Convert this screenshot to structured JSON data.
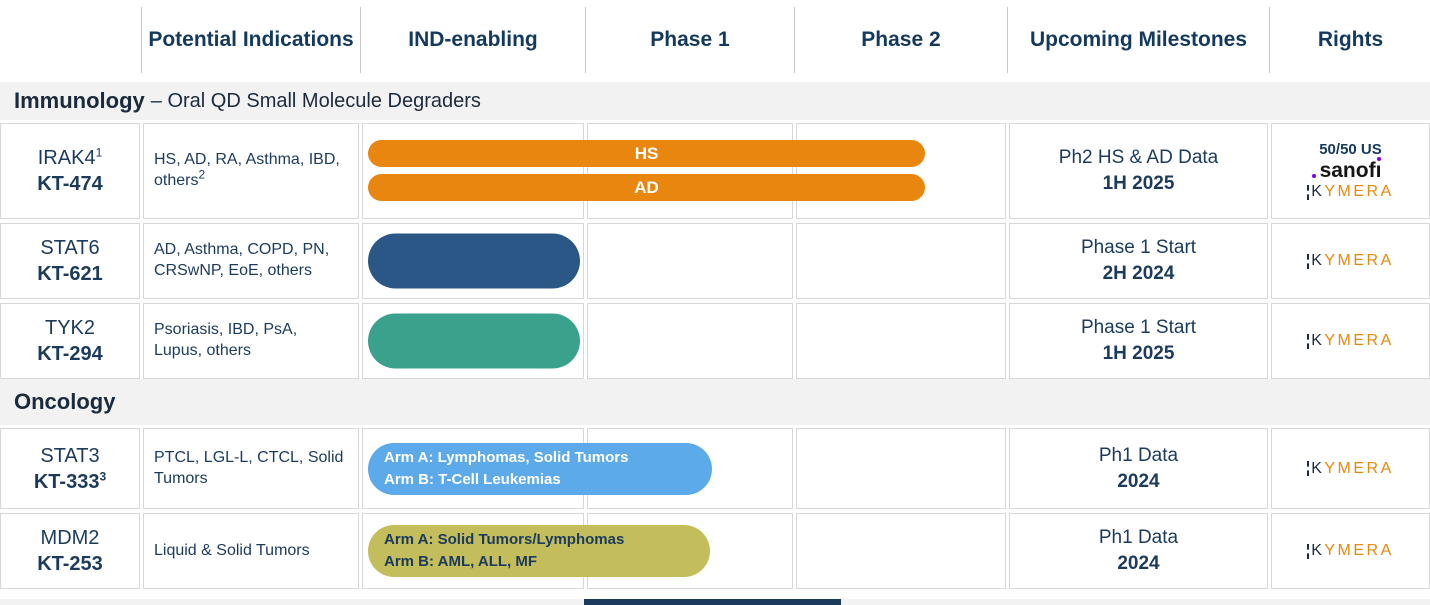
{
  "header": {
    "columns": [
      "",
      "Potential Indications",
      "IND-enabling",
      "Phase 1",
      "Phase 2",
      "Upcoming Milestones",
      "Rights"
    ]
  },
  "sections": {
    "immunology": {
      "title": "Immunology",
      "subtitle": "– Oral QD Small Molecule Degraders"
    },
    "oncology": {
      "title": "Oncology"
    }
  },
  "rows": [
    {
      "target": "IRAK4",
      "target_sup": "1",
      "code": "KT-474",
      "indications": "HS, AD, RA, Asthma, IBD, others",
      "indications_sup": "2",
      "bars": [
        {
          "label": "HS"
        },
        {
          "label": "AD"
        }
      ],
      "milestone_line1": "Ph2 HS & AD Data",
      "milestone_line2": "1H 2025",
      "rights_note": "50/50 US"
    },
    {
      "target": "STAT6",
      "code": "KT-621",
      "indications": "AD, Asthma, COPD, PN, CRSwNP, EoE, others",
      "milestone_line1": "Phase 1 Start",
      "milestone_line2": "2H 2024"
    },
    {
      "target": "TYK2",
      "code": "KT-294",
      "indications": "Psoriasis, IBD, PsA, Lupus, others",
      "milestone_line1": "Phase 1 Start",
      "milestone_line2": "1H 2025"
    },
    {
      "target": "STAT3",
      "code": "KT-333",
      "code_sup": "3",
      "indications": "PTCL, LGL-L, CTCL, Solid Tumors",
      "bar_line1": "Arm A: Lymphomas, Solid Tumors",
      "bar_line2": "Arm B: T-Cell Leukemias",
      "milestone_line1": "Ph1 Data",
      "milestone_line2": "2024"
    },
    {
      "target": "MDM2",
      "code": "KT-253",
      "indications": "Liquid & Solid Tumors",
      "bar_line1": "Arm A: Solid Tumors/Lymphomas",
      "bar_line2": "Arm B: AML, ALL, MF",
      "milestone_line1": "Ph1 Data",
      "milestone_line2": "2024"
    }
  ],
  "brand": {
    "sanofi_main": "sanof",
    "sanofi_i": "ı",
    "kymera_k": "K",
    "kymera_rest": "YMERA"
  },
  "colors": {
    "header_text": "#14395f",
    "section_band_bg": "#f2f2f2",
    "orange_bar": "#e8860f",
    "navy_bar": "#2b5787",
    "teal_bar": "#3aa18d",
    "blue_bar": "#5caaea",
    "olive_bar": "#c4bd5b",
    "kymera_orange": "#e8890c",
    "kymera_dark": "#1b2a3c",
    "sanofi_purple": "#7a00e6",
    "cell_border": "#d8d8d8",
    "bottom_navy": "#1b3a5c"
  }
}
